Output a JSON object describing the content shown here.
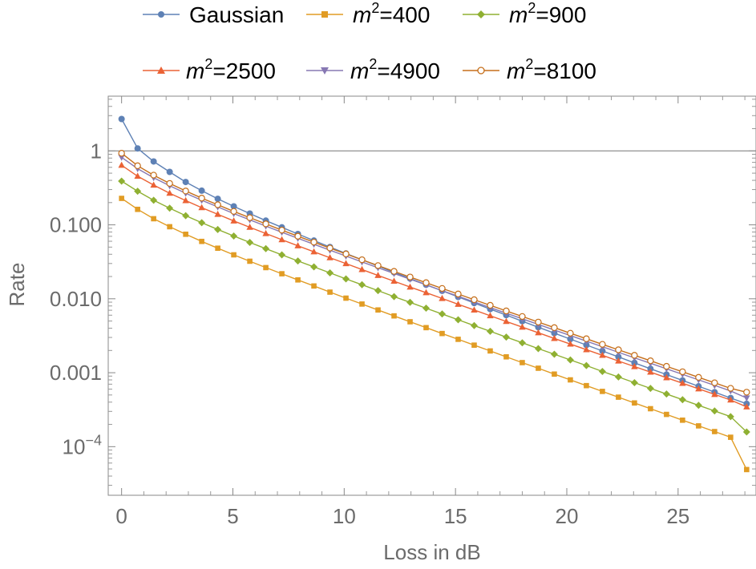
{
  "chart_data": {
    "type": "line",
    "title": "",
    "xlabel": "Loss in dB",
    "ylabel": "Rate",
    "y_scale": "log",
    "xlim": [
      -0.6,
      28.5
    ],
    "ylim": [
      2.2e-05,
      5.5
    ],
    "x_ticks": [
      0,
      5,
      10,
      15,
      20,
      25
    ],
    "x_tick_labels": [
      "0",
      "5",
      "10",
      "15",
      "20",
      "25"
    ],
    "y_ticks": [
      1,
      0.1,
      0.01,
      0.001,
      0.0001
    ],
    "y_tick_labels": [
      {
        "base": "1",
        "sup": ""
      },
      {
        "base": "0.100",
        "sup": ""
      },
      {
        "base": "0.010",
        "sup": ""
      },
      {
        "base": "0.001",
        "sup": ""
      },
      {
        "base": "10",
        "sup": "−4"
      }
    ],
    "reference_line_y": 1,
    "legend_position": "top",
    "x_step": 0.72,
    "n_points": 40,
    "series": [
      {
        "name": "Gaussian",
        "label_sup": "",
        "color": "#5e81b5",
        "marker": "circle",
        "values": [
          2.7,
          1.08,
          0.72,
          0.52,
          0.38,
          0.29,
          0.225,
          0.178,
          0.142,
          0.114,
          0.0925,
          0.0752,
          0.0613,
          0.0501,
          0.041,
          0.0337,
          0.0277,
          0.0228,
          0.0188,
          0.0155,
          0.0128,
          0.0106,
          0.00876,
          0.00725,
          0.00601,
          0.00498,
          0.00413,
          0.00343,
          0.00285,
          0.00237,
          0.00197,
          0.00164,
          0.00136,
          0.00113,
          0.000944,
          0.000786,
          0.000655,
          0.000546,
          0.000455,
          0.00038
        ]
      },
      {
        "name": "m",
        "label_sup": "2",
        "label_suffix": "=400",
        "color": "#e19c24",
        "marker": "square",
        "values": [
          0.228,
          0.162,
          0.121,
          0.0943,
          0.0746,
          0.0597,
          0.0483,
          0.0393,
          0.0322,
          0.0264,
          0.0218,
          0.018,
          0.0149,
          0.0123,
          0.0102,
          0.00849,
          0.00706,
          0.00587,
          0.00489,
          0.00407,
          0.00339,
          0.00283,
          0.00236,
          0.00197,
          0.00164,
          0.00137,
          0.00115,
          0.000958,
          0.0008,
          0.000669,
          0.000559,
          0.000467,
          0.00039,
          0.000326,
          0.000273,
          0.000228,
          0.000191,
          0.00016,
          0.000134,
          4.9e-05
        ]
      },
      {
        "name": "m",
        "label_sup": "2",
        "label_suffix": "=900",
        "color": "#8fb032",
        "marker": "diamond",
        "values": [
          0.39,
          0.285,
          0.215,
          0.168,
          0.133,
          0.107,
          0.0866,
          0.0706,
          0.0579,
          0.0476,
          0.0393,
          0.0325,
          0.027,
          0.0224,
          0.0186,
          0.0155,
          0.0129,
          0.0107,
          0.00895,
          0.00746,
          0.00623,
          0.0052,
          0.00434,
          0.00363,
          0.00303,
          0.00254,
          0.00212,
          0.00178,
          0.00149,
          0.00125,
          0.00104,
          0.000875,
          0.000733,
          0.000614,
          0.000515,
          0.000432,
          0.000362,
          0.000304,
          0.000255,
          0.000158
        ]
      },
      {
        "name": "m",
        "label_sup": "2",
        "label_suffix": "=2500",
        "color": "#eb6235",
        "marker": "triangle-up",
        "values": [
          0.64,
          0.455,
          0.345,
          0.268,
          0.213,
          0.171,
          0.139,
          0.113,
          0.0928,
          0.0763,
          0.063,
          0.0521,
          0.0432,
          0.0359,
          0.0299,
          0.0249,
          0.0207,
          0.0173,
          0.0144,
          0.0121,
          0.0101,
          0.00843,
          0.00705,
          0.0059,
          0.00494,
          0.00414,
          0.00347,
          0.00291,
          0.00244,
          0.00205,
          0.00172,
          0.00144,
          0.00121,
          0.00102,
          0.000856,
          0.00072,
          0.000605,
          0.000509,
          0.000428,
          0.000345
        ]
      },
      {
        "name": "m",
        "label_sup": "2",
        "label_suffix": "=4900",
        "color": "#8778b3",
        "marker": "triangle-down",
        "values": [
          0.82,
          0.575,
          0.435,
          0.338,
          0.268,
          0.215,
          0.175,
          0.142,
          0.117,
          0.0963,
          0.0795,
          0.0658,
          0.0546,
          0.0454,
          0.0378,
          0.0315,
          0.0263,
          0.022,
          0.0184,
          0.0154,
          0.0129,
          0.0108,
          0.00905,
          0.0076,
          0.00638,
          0.00536,
          0.0045,
          0.00378,
          0.00318,
          0.00267,
          0.00225,
          0.00189,
          0.00159,
          0.00134,
          0.00113,
          0.00095,
          0.0008,
          0.000673,
          0.000567,
          0.000455
        ]
      },
      {
        "name": "m",
        "label_sup": "2",
        "label_suffix": "=8100",
        "color": "#c56e1a",
        "marker": "open-circle",
        "values": [
          0.93,
          0.63,
          0.47,
          0.363,
          0.287,
          0.23,
          0.187,
          0.152,
          0.125,
          0.103,
          0.0848,
          0.0702,
          0.0583,
          0.0485,
          0.0404,
          0.0337,
          0.0281,
          0.0235,
          0.0197,
          0.0165,
          0.0138,
          0.0116,
          0.00972,
          0.00816,
          0.00685,
          0.00576,
          0.00484,
          0.00407,
          0.00342,
          0.00288,
          0.00242,
          0.00204,
          0.00172,
          0.00145,
          0.00122,
          0.00103,
          0.000866,
          0.00073,
          0.000615,
          0.000545
        ]
      }
    ]
  }
}
